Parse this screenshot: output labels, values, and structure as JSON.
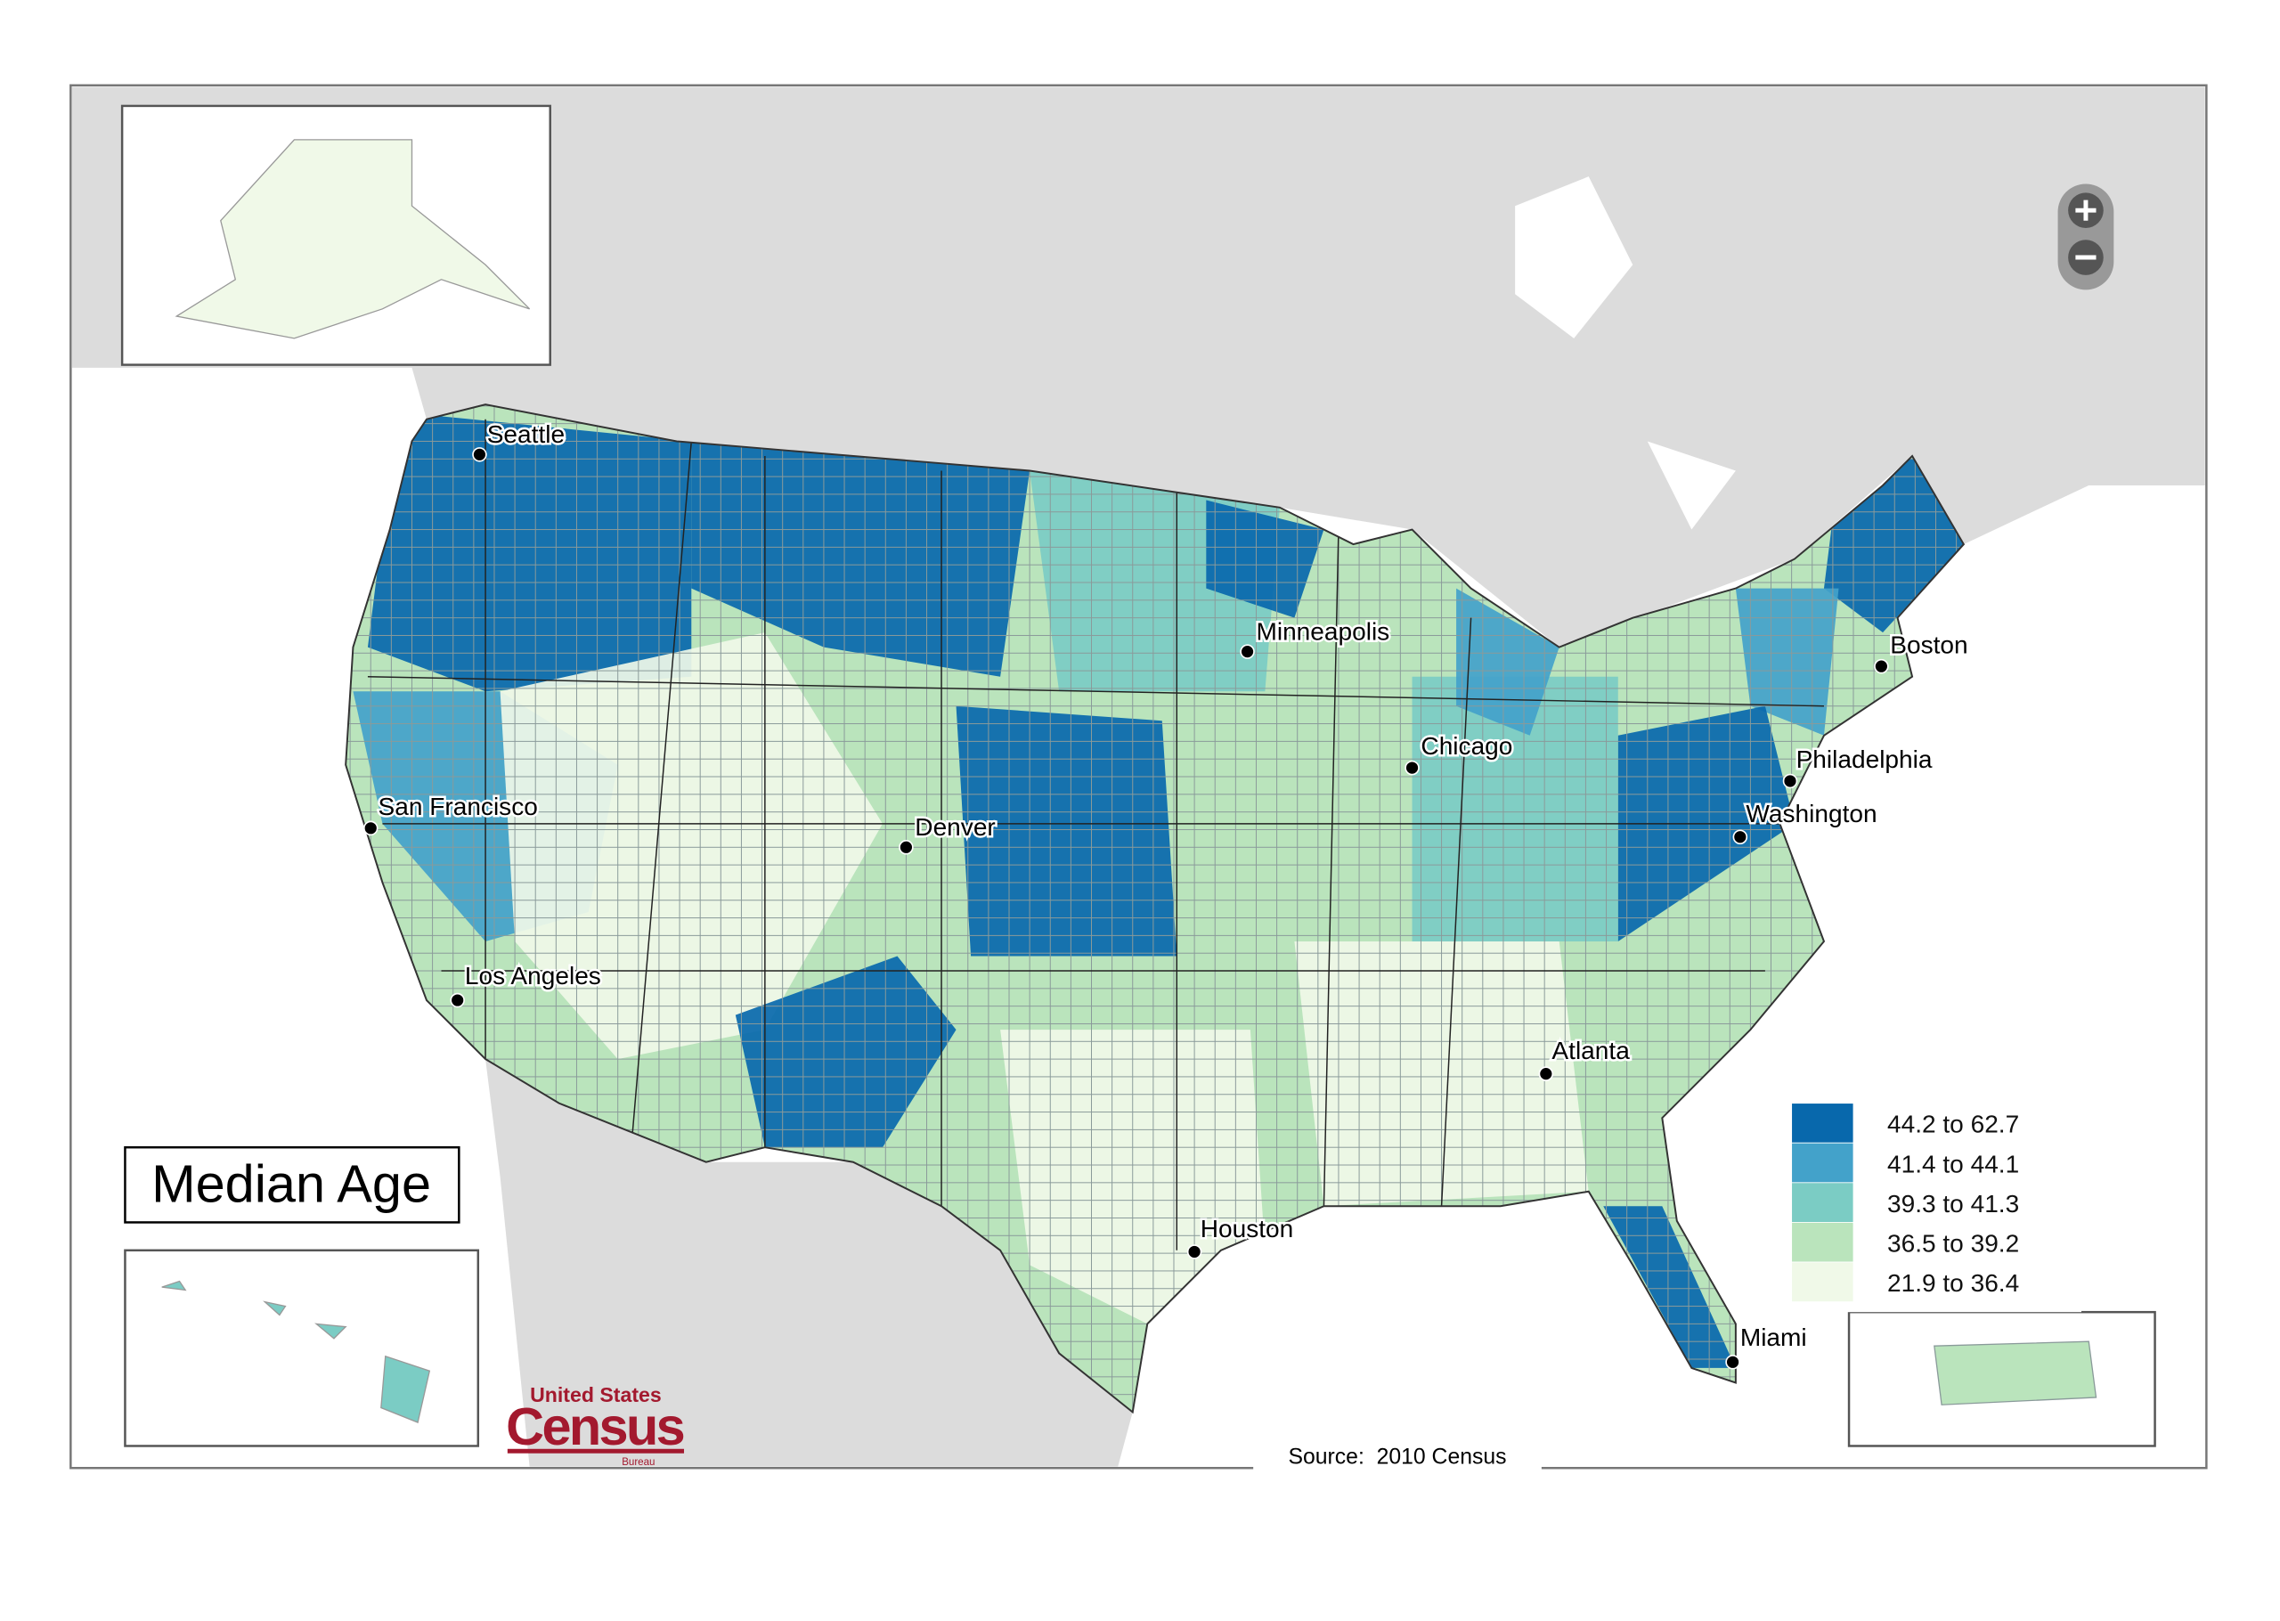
{
  "title": "Median Age",
  "cities": [
    {
      "name": "Seattle"
    },
    {
      "name": "San Francisco"
    },
    {
      "name": "Los Angeles"
    },
    {
      "name": "Denver"
    },
    {
      "name": "Minneapolis"
    },
    {
      "name": "Chicago"
    },
    {
      "name": "Boston"
    },
    {
      "name": "Philadelphia"
    },
    {
      "name": "Washington"
    },
    {
      "name": "Atlanta"
    },
    {
      "name": "Houston"
    },
    {
      "name": "Miami"
    }
  ],
  "legend": [
    {
      "label": "44.2 to 62.7",
      "color": "#0868ac"
    },
    {
      "label": "41.4 to 44.1",
      "color": "#43a2ca"
    },
    {
      "label": "39.3 to 41.3",
      "color": "#7bccc4"
    },
    {
      "label": "36.5 to 39.2",
      "color": "#bae4bc"
    },
    {
      "label": "21.9 to 36.4",
      "color": "#f0f9e8"
    }
  ],
  "source": "Source:  2010 Census",
  "logo": {
    "top": "United States",
    "main": "Census",
    "bottom": "Bureau"
  }
}
